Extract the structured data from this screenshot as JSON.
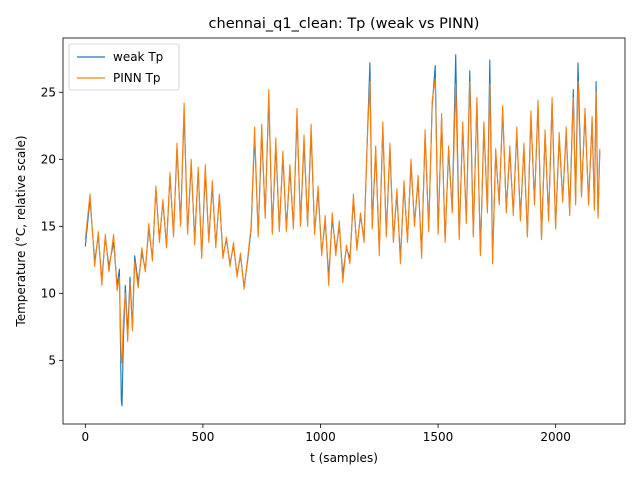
{
  "chart_data": {
    "type": "line",
    "title": "chennai_q1_clean: Tp (weak vs PINN)",
    "xlabel": "t (samples)",
    "ylabel": "Temperature (°C, relative scale)",
    "xlim": [
      -95,
      2295
    ],
    "ylim": [
      0.25,
      29.05
    ],
    "xticks": [
      0,
      500,
      1000,
      1500,
      2000
    ],
    "yticks": [
      5,
      10,
      15,
      20,
      25
    ],
    "grid": false,
    "legend_position": "top-left",
    "series": [
      {
        "name": "weak Tp",
        "color": "#1f77b4",
        "points": [
          [
            0,
            13.5
          ],
          [
            20,
            17.0
          ],
          [
            40,
            12.4
          ],
          [
            55,
            14.3
          ],
          [
            70,
            11.0
          ],
          [
            85,
            14.2
          ],
          [
            100,
            12.0
          ],
          [
            120,
            13.8
          ],
          [
            135,
            10.6
          ],
          [
            145,
            11.8
          ],
          [
            153,
            2.0
          ],
          [
            156,
            1.6
          ],
          [
            162,
            6.5
          ],
          [
            170,
            10.6
          ],
          [
            180,
            7.0
          ],
          [
            190,
            11.2
          ],
          [
            200,
            7.5
          ],
          [
            210,
            12.8
          ],
          [
            225,
            10.8
          ],
          [
            240,
            13.0
          ],
          [
            255,
            11.8
          ],
          [
            270,
            14.8
          ],
          [
            285,
            12.6
          ],
          [
            300,
            17.8
          ],
          [
            315,
            14.0
          ],
          [
            330,
            16.8
          ],
          [
            345,
            13.6
          ],
          [
            360,
            18.8
          ],
          [
            375,
            14.4
          ],
          [
            390,
            20.8
          ],
          [
            405,
            15.2
          ],
          [
            420,
            23.5
          ],
          [
            435,
            14.6
          ],
          [
            450,
            19.6
          ],
          [
            465,
            14.0
          ],
          [
            480,
            19.2
          ],
          [
            495,
            12.8
          ],
          [
            510,
            19.0
          ],
          [
            525,
            14.0
          ],
          [
            540,
            18.0
          ],
          [
            555,
            13.6
          ],
          [
            570,
            17.2
          ],
          [
            585,
            12.8
          ],
          [
            600,
            14.0
          ],
          [
            615,
            12.2
          ],
          [
            630,
            13.6
          ],
          [
            645,
            11.4
          ],
          [
            660,
            12.8
          ],
          [
            675,
            10.5
          ],
          [
            690,
            12.4
          ],
          [
            705,
            14.8
          ],
          [
            720,
            21.8
          ],
          [
            735,
            14.4
          ],
          [
            750,
            22.0
          ],
          [
            765,
            15.8
          ],
          [
            780,
            24.6
          ],
          [
            795,
            14.6
          ],
          [
            810,
            21.0
          ],
          [
            825,
            14.8
          ],
          [
            840,
            20.2
          ],
          [
            855,
            14.8
          ],
          [
            870,
            19.2
          ],
          [
            885,
            15.0
          ],
          [
            900,
            23.2
          ],
          [
            915,
            15.2
          ],
          [
            930,
            21.2
          ],
          [
            945,
            15.2
          ],
          [
            960,
            22.0
          ],
          [
            975,
            14.6
          ],
          [
            990,
            17.6
          ],
          [
            1005,
            13.0
          ],
          [
            1020,
            15.4
          ],
          [
            1035,
            11.2
          ],
          [
            1050,
            15.6
          ],
          [
            1065,
            13.2
          ],
          [
            1080,
            15.0
          ],
          [
            1095,
            11.4
          ],
          [
            1110,
            13.4
          ],
          [
            1125,
            12.6
          ],
          [
            1140,
            17.0
          ],
          [
            1155,
            13.4
          ],
          [
            1170,
            15.8
          ],
          [
            1185,
            14.0
          ],
          [
            1200,
            22.0
          ],
          [
            1210,
            27.2
          ],
          [
            1220,
            15.0
          ],
          [
            1235,
            20.6
          ],
          [
            1250,
            13.2
          ],
          [
            1265,
            22.4
          ],
          [
            1280,
            14.4
          ],
          [
            1295,
            20.8
          ],
          [
            1310,
            14.0
          ],
          [
            1325,
            17.4
          ],
          [
            1340,
            12.6
          ],
          [
            1355,
            18.0
          ],
          [
            1370,
            14.0
          ],
          [
            1385,
            19.6
          ],
          [
            1400,
            15.2
          ],
          [
            1415,
            18.4
          ],
          [
            1430,
            13.0
          ],
          [
            1445,
            21.8
          ],
          [
            1460,
            14.8
          ],
          [
            1475,
            24.0
          ],
          [
            1488,
            27.0
          ],
          [
            1500,
            14.6
          ],
          [
            1515,
            23.0
          ],
          [
            1530,
            14.0
          ],
          [
            1545,
            20.6
          ],
          [
            1560,
            16.2
          ],
          [
            1575,
            27.8
          ],
          [
            1590,
            14.2
          ],
          [
            1605,
            22.4
          ],
          [
            1620,
            15.4
          ],
          [
            1635,
            26.6
          ],
          [
            1650,
            14.4
          ],
          [
            1665,
            24.2
          ],
          [
            1680,
            13.0
          ],
          [
            1695,
            22.4
          ],
          [
            1710,
            16.2
          ],
          [
            1720,
            27.4
          ],
          [
            1732,
            12.6
          ],
          [
            1745,
            20.4
          ],
          [
            1760,
            16.8
          ],
          [
            1775,
            23.6
          ],
          [
            1790,
            16.2
          ],
          [
            1805,
            20.6
          ],
          [
            1820,
            16.0
          ],
          [
            1835,
            22.0
          ],
          [
            1850,
            15.6
          ],
          [
            1865,
            20.8
          ],
          [
            1880,
            14.4
          ],
          [
            1895,
            23.2
          ],
          [
            1910,
            16.8
          ],
          [
            1925,
            24.0
          ],
          [
            1940,
            14.2
          ],
          [
            1955,
            21.8
          ],
          [
            1970,
            15.6
          ],
          [
            1985,
            24.2
          ],
          [
            2000,
            15.0
          ],
          [
            2015,
            21.6
          ],
          [
            2030,
            17.0
          ],
          [
            2045,
            22.0
          ],
          [
            2060,
            16.0
          ],
          [
            2075,
            25.2
          ],
          [
            2085,
            16.8
          ],
          [
            2095,
            27.2
          ],
          [
            2110,
            17.4
          ],
          [
            2125,
            23.4
          ],
          [
            2140,
            16.8
          ],
          [
            2155,
            22.8
          ],
          [
            2165,
            16.4
          ],
          [
            2172,
            25.8
          ],
          [
            2180,
            15.8
          ],
          [
            2188,
            20.6
          ]
        ]
      },
      {
        "name": "PINN Tp",
        "color": "#ff7f0e",
        "points": [
          [
            0,
            14.0
          ],
          [
            20,
            17.4
          ],
          [
            40,
            12.0
          ],
          [
            55,
            14.6
          ],
          [
            70,
            10.6
          ],
          [
            85,
            14.4
          ],
          [
            100,
            11.6
          ],
          [
            120,
            14.4
          ],
          [
            135,
            10.2
          ],
          [
            145,
            11.2
          ],
          [
            153,
            5.0
          ],
          [
            156,
            4.8
          ],
          [
            162,
            8.0
          ],
          [
            170,
            10.0
          ],
          [
            180,
            6.4
          ],
          [
            190,
            10.8
          ],
          [
            200,
            7.2
          ],
          [
            210,
            12.4
          ],
          [
            225,
            10.4
          ],
          [
            240,
            13.4
          ],
          [
            255,
            11.6
          ],
          [
            270,
            15.2
          ],
          [
            285,
            12.4
          ],
          [
            300,
            18.0
          ],
          [
            315,
            13.8
          ],
          [
            330,
            17.0
          ],
          [
            345,
            13.4
          ],
          [
            360,
            19.0
          ],
          [
            375,
            14.2
          ],
          [
            390,
            21.2
          ],
          [
            405,
            15.0
          ],
          [
            420,
            24.2
          ],
          [
            435,
            14.4
          ],
          [
            450,
            20.0
          ],
          [
            465,
            13.6
          ],
          [
            480,
            19.4
          ],
          [
            495,
            12.6
          ],
          [
            510,
            19.6
          ],
          [
            525,
            13.8
          ],
          [
            540,
            18.4
          ],
          [
            555,
            13.4
          ],
          [
            570,
            17.4
          ],
          [
            585,
            12.6
          ],
          [
            600,
            14.2
          ],
          [
            615,
            12.0
          ],
          [
            630,
            13.8
          ],
          [
            645,
            11.2
          ],
          [
            660,
            13.0
          ],
          [
            675,
            10.3
          ],
          [
            690,
            12.6
          ],
          [
            705,
            15.0
          ],
          [
            720,
            22.4
          ],
          [
            735,
            14.2
          ],
          [
            750,
            22.6
          ],
          [
            765,
            15.6
          ],
          [
            780,
            25.2
          ],
          [
            795,
            14.4
          ],
          [
            810,
            21.6
          ],
          [
            825,
            14.6
          ],
          [
            840,
            20.6
          ],
          [
            855,
            14.6
          ],
          [
            870,
            19.6
          ],
          [
            885,
            14.8
          ],
          [
            900,
            23.8
          ],
          [
            915,
            15.0
          ],
          [
            930,
            21.8
          ],
          [
            945,
            15.0
          ],
          [
            960,
            22.6
          ],
          [
            975,
            14.4
          ],
          [
            990,
            18.0
          ],
          [
            1005,
            12.8
          ],
          [
            1020,
            15.8
          ],
          [
            1035,
            10.6
          ],
          [
            1050,
            16.0
          ],
          [
            1065,
            12.8
          ],
          [
            1080,
            15.4
          ],
          [
            1095,
            10.8
          ],
          [
            1110,
            13.6
          ],
          [
            1125,
            12.2
          ],
          [
            1140,
            17.4
          ],
          [
            1155,
            13.2
          ],
          [
            1170,
            16.0
          ],
          [
            1185,
            13.8
          ],
          [
            1200,
            21.8
          ],
          [
            1210,
            25.8
          ],
          [
            1220,
            14.8
          ],
          [
            1235,
            21.0
          ],
          [
            1250,
            12.8
          ],
          [
            1265,
            22.8
          ],
          [
            1280,
            14.2
          ],
          [
            1295,
            21.2
          ],
          [
            1310,
            13.8
          ],
          [
            1325,
            17.8
          ],
          [
            1340,
            12.2
          ],
          [
            1355,
            18.4
          ],
          [
            1370,
            13.8
          ],
          [
            1385,
            20.0
          ],
          [
            1400,
            15.0
          ],
          [
            1415,
            18.8
          ],
          [
            1430,
            12.6
          ],
          [
            1445,
            22.2
          ],
          [
            1460,
            14.6
          ],
          [
            1475,
            24.4
          ],
          [
            1488,
            26.0
          ],
          [
            1500,
            14.4
          ],
          [
            1515,
            23.4
          ],
          [
            1530,
            13.8
          ],
          [
            1545,
            21.0
          ],
          [
            1560,
            16.0
          ],
          [
            1575,
            25.6
          ],
          [
            1590,
            14.0
          ],
          [
            1605,
            22.8
          ],
          [
            1620,
            15.2
          ],
          [
            1635,
            25.8
          ],
          [
            1650,
            14.2
          ],
          [
            1665,
            24.6
          ],
          [
            1680,
            12.8
          ],
          [
            1695,
            22.8
          ],
          [
            1710,
            16.0
          ],
          [
            1720,
            25.6
          ],
          [
            1732,
            12.2
          ],
          [
            1745,
            20.8
          ],
          [
            1760,
            16.6
          ],
          [
            1775,
            24.0
          ],
          [
            1790,
            16.0
          ],
          [
            1805,
            21.0
          ],
          [
            1820,
            15.8
          ],
          [
            1835,
            22.4
          ],
          [
            1850,
            15.4
          ],
          [
            1865,
            21.2
          ],
          [
            1880,
            14.2
          ],
          [
            1895,
            23.6
          ],
          [
            1910,
            16.6
          ],
          [
            1925,
            24.4
          ],
          [
            1940,
            14.0
          ],
          [
            1955,
            22.2
          ],
          [
            1970,
            15.4
          ],
          [
            1985,
            24.6
          ],
          [
            2000,
            14.8
          ],
          [
            2015,
            22.0
          ],
          [
            2030,
            16.8
          ],
          [
            2045,
            22.4
          ],
          [
            2060,
            15.8
          ],
          [
            2075,
            24.6
          ],
          [
            2085,
            16.6
          ],
          [
            2095,
            25.8
          ],
          [
            2110,
            17.2
          ],
          [
            2125,
            23.8
          ],
          [
            2140,
            16.6
          ],
          [
            2155,
            23.2
          ],
          [
            2165,
            16.2
          ],
          [
            2172,
            25.0
          ],
          [
            2180,
            15.6
          ],
          [
            2188,
            20.8
          ]
        ]
      }
    ]
  }
}
